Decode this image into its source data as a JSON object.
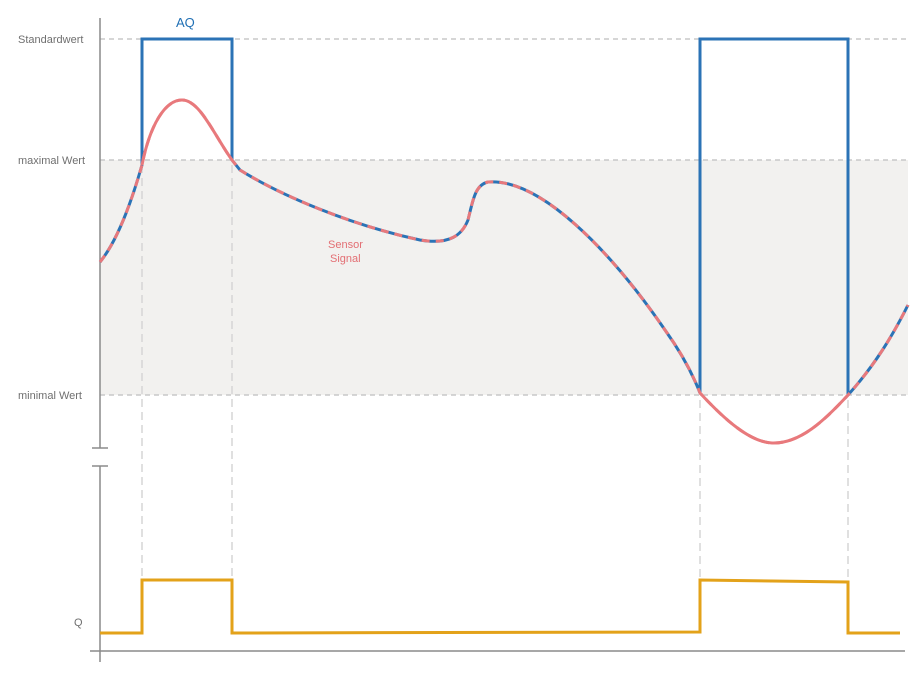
{
  "labels": {
    "standardwert": "Standardwert",
    "maximal": "maximal Wert",
    "minimal": "minimal Wert",
    "q": "Q",
    "aq": "AQ",
    "sensor_line1": "Sensor",
    "sensor_line2": "Signal"
  },
  "colors": {
    "aq": "#2b73b6",
    "sensor": "#e8797c",
    "q": "#e3a21a",
    "band": "#f2f1ef",
    "axis": "#8a8a8a",
    "dashed": "#c8c8c8"
  }
}
